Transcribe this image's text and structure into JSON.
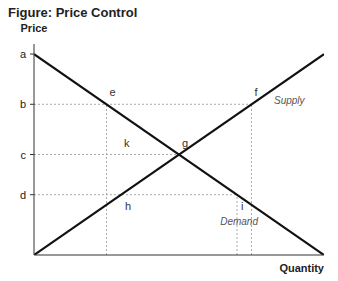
{
  "chart_data": {
    "type": "line",
    "title": "Figure: Price Control",
    "x_label": "Quantity",
    "y_label": "Price",
    "x": [
      0,
      10
    ],
    "series": [
      {
        "name": "Supply",
        "color": "#111111",
        "values": [
          0,
          10
        ]
      },
      {
        "name": "Demand",
        "color": "#111111",
        "values": [
          10,
          0
        ]
      }
    ],
    "xlim": [
      0,
      10
    ],
    "ylim": [
      0,
      10.5
    ],
    "yticks": [
      {
        "value": 10.0,
        "label": "a"
      },
      {
        "value": 7.5,
        "label": "b"
      },
      {
        "value": 5.0,
        "label": "c"
      },
      {
        "value": 3.0,
        "label": "d"
      }
    ],
    "tick_labels": "y",
    "grid": false,
    "guides": [
      {
        "x": [
          0,
          7.5
        ],
        "y": [
          7.5,
          7.5
        ],
        "color": "#aaaaaa"
      },
      {
        "x": [
          0,
          5.0
        ],
        "y": [
          5.0,
          5.0
        ],
        "color": "#aaaaaa"
      },
      {
        "x": [
          0,
          7.0
        ],
        "y": [
          3.0,
          3.0
        ],
        "color": "#aaaaaa"
      },
      {
        "x": [
          2.5,
          2.5
        ],
        "y": [
          0,
          7.5
        ],
        "color": "#aaaaaa"
      },
      {
        "x": [
          7.5,
          7.5
        ],
        "y": [
          0,
          7.5
        ],
        "color": "#aaaaaa"
      },
      {
        "x": [
          7.0,
          7.0
        ],
        "y": [
          0,
          3.0
        ],
        "color": "#aaaaaa"
      }
    ],
    "annotations": [
      {
        "text": "e",
        "x": 2.5,
        "y": 7.5
      },
      {
        "text": "f",
        "x": 7.5,
        "y": 7.5
      },
      {
        "text": "g",
        "x": 5.0,
        "y": 5.0
      },
      {
        "text": "k",
        "x": 3.0,
        "y": 5.0
      },
      {
        "text": "h",
        "x": 3.0,
        "y": 3.0
      },
      {
        "text": "i",
        "x": 7.0,
        "y": 3.0
      }
    ]
  }
}
